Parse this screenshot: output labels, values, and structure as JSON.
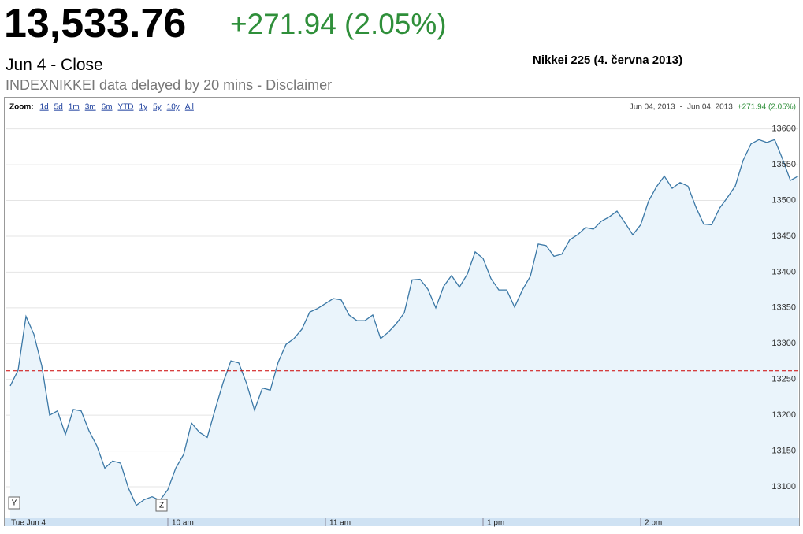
{
  "header": {
    "price": "13,533.76",
    "change": "+271.94 (2.05%)",
    "status": "Jun 4 - Close",
    "note": "INDEXNIKKEI data delayed by 20 mins - Disclaimer"
  },
  "toolbar": {
    "zoom_label": "Zoom:",
    "zoom_options": [
      "1d",
      "5d",
      "1m",
      "3m",
      "6m",
      "YTD",
      "1y",
      "5y",
      "10y",
      "All"
    ],
    "range_start": "Jun 04, 2013",
    "range_sep": "-",
    "range_end": "Jun 04, 2013",
    "range_change": "+271.94 (2.05%)"
  },
  "markers": [
    "Y",
    "Z"
  ],
  "chart_data": {
    "type": "area",
    "title": "Nikkei 225 (4. června 2013)",
    "categories": [
      "Tue Jun 4",
      null,
      null,
      null,
      null,
      null,
      null,
      null,
      null,
      null,
      null,
      null,
      null,
      null,
      null,
      null,
      null,
      null,
      null,
      null,
      "10 am",
      null,
      null,
      null,
      null,
      null,
      null,
      null,
      null,
      null,
      null,
      null,
      null,
      null,
      null,
      null,
      null,
      null,
      null,
      null,
      "11 am",
      null,
      null,
      null,
      null,
      null,
      null,
      null,
      null,
      null,
      null,
      null,
      null,
      null,
      null,
      null,
      null,
      null,
      null,
      null,
      "1 pm",
      null,
      null,
      null,
      null,
      null,
      null,
      null,
      null,
      null,
      null,
      null,
      null,
      null,
      null,
      null,
      null,
      null,
      null,
      null,
      "2 pm",
      null,
      null,
      null,
      null,
      null,
      null,
      null,
      null,
      null,
      null,
      null,
      null,
      null,
      null,
      null,
      null,
      null,
      null,
      null,
      null
    ],
    "values": [
      13241,
      13263,
      13338,
      13313,
      13269,
      13200,
      13206,
      13173,
      13208,
      13206,
      13178,
      13157,
      13126,
      13136,
      13133,
      13098,
      13074,
      13082,
      13086,
      13081,
      13096,
      13126,
      13145,
      13189,
      13176,
      13169,
      13208,
      13245,
      13276,
      13273,
      13244,
      13207,
      13238,
      13235,
      13274,
      13299,
      13307,
      13320,
      13344,
      13349,
      13356,
      13363,
      13361,
      13340,
      13332,
      13332,
      13340,
      13307,
      13316,
      13328,
      13343,
      13389,
      13390,
      13376,
      13350,
      13380,
      13395,
      13379,
      13397,
      13428,
      13419,
      13391,
      13375,
      13375,
      13351,
      13375,
      13394,
      13439,
      13437,
      13422,
      13425,
      13445,
      13452,
      13462,
      13460,
      13471,
      13477,
      13485,
      13469,
      13452,
      13466,
      13499,
      13519,
      13534,
      13517,
      13525,
      13520,
      13491,
      13467,
      13466,
      13489,
      13504,
      13520,
      13556,
      13579,
      13585,
      13581,
      13585,
      13558,
      13528,
      13534
    ],
    "color": "#3b78a6",
    "fill": "#eaf4fb",
    "reference_line": 13262,
    "reference_color": "#cc0000",
    "ylim": [
      13056,
      13615
    ],
    "yticks": [
      13100,
      13150,
      13200,
      13250,
      13300,
      13350,
      13400,
      13450,
      13500,
      13550,
      13600
    ],
    "grid": true
  }
}
